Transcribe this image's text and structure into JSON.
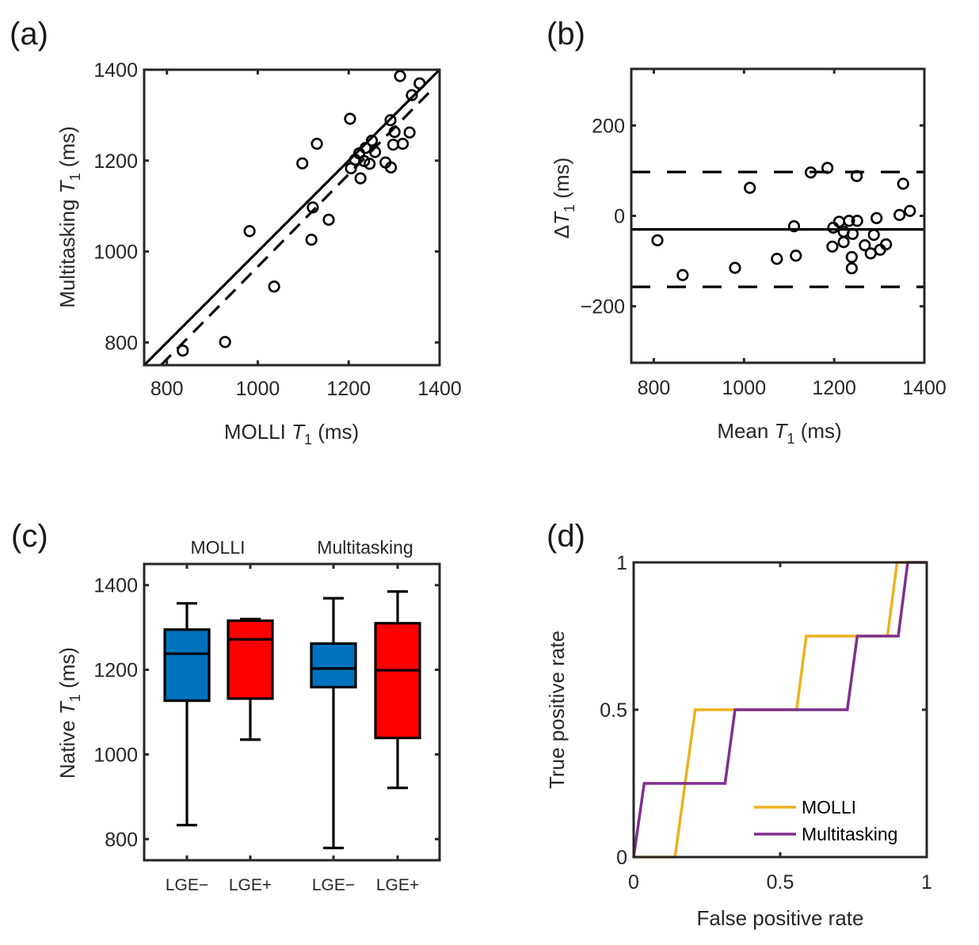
{
  "chart_data": [
    {
      "id": "a",
      "panel_label": "(a)",
      "type": "scatter",
      "title": "",
      "xlabel_prefix": "MOLLI ",
      "xlabel_var": "T",
      "xlabel_sub": "1",
      "xlabel_suffix": " (ms)",
      "ylabel_prefix": "Multitasking ",
      "ylabel_var": "T",
      "ylabel_sub": "1",
      "ylabel_suffix": " (ms)",
      "xlim": [
        750,
        1400
      ],
      "ylim": [
        750,
        1400
      ],
      "xticks": [
        800,
        1000,
        1200,
        1400
      ],
      "yticks": [
        800,
        1000,
        1200,
        1400
      ],
      "grid": false,
      "points": [
        [
          835,
          782
        ],
        [
          928,
          801
        ],
        [
          982,
          1045
        ],
        [
          1036,
          923
        ],
        [
          1098,
          1194
        ],
        [
          1118,
          1026
        ],
        [
          1121,
          1097
        ],
        [
          1130,
          1237
        ],
        [
          1156,
          1070
        ],
        [
          1203,
          1292
        ],
        [
          1205,
          1183
        ],
        [
          1214,
          1202
        ],
        [
          1223,
          1216
        ],
        [
          1226,
          1161
        ],
        [
          1234,
          1199
        ],
        [
          1237,
          1228
        ],
        [
          1246,
          1193
        ],
        [
          1251,
          1244
        ],
        [
          1258,
          1219
        ],
        [
          1281,
          1196
        ],
        [
          1293,
          1185
        ],
        [
          1292,
          1289
        ],
        [
          1298,
          1235
        ],
        [
          1301,
          1263
        ],
        [
          1313,
          1386
        ],
        [
          1319,
          1237
        ],
        [
          1334,
          1262
        ],
        [
          1339,
          1344
        ],
        [
          1356,
          1370
        ]
      ],
      "lines": [
        {
          "name": "identity",
          "style": "solid",
          "x": [
            750,
            1400
          ],
          "y": [
            750,
            1400
          ]
        },
        {
          "name": "regression",
          "style": "dashed",
          "x": [
            787,
            1377
          ],
          "y": [
            750,
            1350
          ]
        }
      ]
    },
    {
      "id": "b",
      "panel_label": "(b)",
      "type": "scatter",
      "title": "",
      "xlabel_prefix": "Mean ",
      "xlabel_var": "T",
      "xlabel_sub": "1",
      "xlabel_suffix": " (ms)",
      "ylabel_prefix": "Δ",
      "ylabel_var": "T",
      "ylabel_sub": "1",
      "ylabel_suffix": "  (ms)",
      "xlim": [
        750,
        1400
      ],
      "ylim": [
        -325,
        325
      ],
      "xticks": [
        800,
        1000,
        1200,
        1400
      ],
      "yticks": [
        -200,
        0,
        200
      ],
      "ytick_labels": [
        "−200",
        "0",
        "200"
      ],
      "grid": false,
      "points": [
        [
          808,
          -54
        ],
        [
          864,
          -131
        ],
        [
          980,
          -115
        ],
        [
          1013,
          62
        ],
        [
          1073,
          -95
        ],
        [
          1111,
          -23
        ],
        [
          1115,
          -88
        ],
        [
          1148,
          96
        ],
        [
          1185,
          106
        ],
        [
          1196,
          -68
        ],
        [
          1198,
          -26
        ],
        [
          1211,
          -13
        ],
        [
          1221,
          -35
        ],
        [
          1221,
          -58
        ],
        [
          1233,
          -11
        ],
        [
          1241,
          -40
        ],
        [
          1239,
          -91
        ],
        [
          1239,
          -116
        ],
        [
          1250,
          88
        ],
        [
          1251,
          -11
        ],
        [
          1268,
          -65
        ],
        [
          1281,
          -83
        ],
        [
          1288,
          -42
        ],
        [
          1294,
          -5
        ],
        [
          1302,
          -75
        ],
        [
          1315,
          -63
        ],
        [
          1345,
          2
        ],
        [
          1353,
          71
        ],
        [
          1368,
          11
        ]
      ],
      "hlines": [
        {
          "name": "mean-difference",
          "style": "solid",
          "y": -30
        },
        {
          "name": "upper-limit-of-agreement",
          "style": "dashed",
          "y": 97
        },
        {
          "name": "lower-limit-of-agreement",
          "style": "dashed",
          "y": -157
        }
      ]
    },
    {
      "id": "c",
      "panel_label": "(c)",
      "type": "box",
      "title": "",
      "ylabel_prefix": "Native ",
      "ylabel_var": "T",
      "ylabel_sub": "1",
      "ylabel_suffix": " (ms)",
      "ylim": [
        750,
        1450
      ],
      "yticks": [
        800,
        1000,
        1200,
        1400
      ],
      "grid": false,
      "group_labels": [
        "MOLLI",
        "Multitasking"
      ],
      "categories": [
        "LGE−",
        "LGE+",
        "LGE−",
        "LGE+"
      ],
      "boxes": [
        {
          "group": "MOLLI",
          "category": "LGE−",
          "color": "#0072BD",
          "min": 833,
          "q1": 1127,
          "median": 1238,
          "q3": 1295,
          "max": 1357
        },
        {
          "group": "MOLLI",
          "category": "LGE+",
          "color": "#FF0000",
          "min": 1035,
          "q1": 1132,
          "median": 1272,
          "q3": 1316,
          "max": 1320
        },
        {
          "group": "Multitasking",
          "category": "LGE−",
          "color": "#0072BD",
          "min": 779,
          "q1": 1159,
          "median": 1203,
          "q3": 1262,
          "max": 1369
        },
        {
          "group": "Multitasking",
          "category": "LGE+",
          "color": "#FF0000",
          "min": 921,
          "q1": 1039,
          "median": 1199,
          "q3": 1310,
          "max": 1385
        }
      ]
    },
    {
      "id": "d",
      "panel_label": "(d)",
      "type": "line",
      "title": "",
      "xlabel": "False positive rate",
      "ylabel": "True positive rate",
      "xlim": [
        0,
        1
      ],
      "ylim": [
        0,
        1
      ],
      "xticks": [
        0,
        0.5,
        1
      ],
      "yticks": [
        0,
        0.5,
        1
      ],
      "grid": false,
      "legend_position": "bottom-right",
      "series": [
        {
          "name": "MOLLI",
          "color": "#EDB120",
          "x": [
            0,
            0.141,
            0.21,
            0.556,
            0.589,
            0.866,
            0.899,
            1
          ],
          "y": [
            0,
            0,
            0.5,
            0.5,
            0.75,
            0.75,
            1,
            1
          ]
        },
        {
          "name": "Multitasking",
          "color": "#7E2F8E",
          "x": [
            0,
            0.036,
            0.312,
            0.346,
            0.729,
            0.763,
            0.903,
            0.935,
            1
          ],
          "y": [
            0,
            0.25,
            0.25,
            0.5,
            0.5,
            0.75,
            0.75,
            1,
            1
          ]
        }
      ]
    }
  ]
}
